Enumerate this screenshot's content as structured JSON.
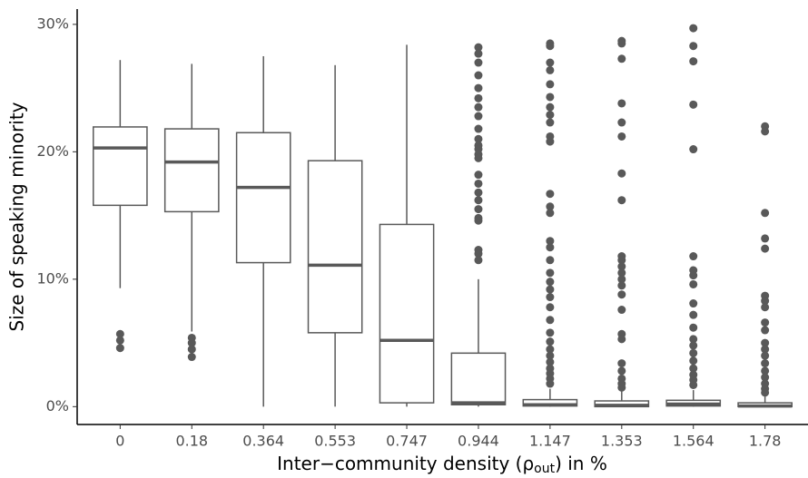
{
  "chart_data": {
    "type": "box",
    "y_label": "Size of speaking minority",
    "x_label": [
      "Inter−community density (ρ",
      "out",
      ") in %"
    ],
    "categories": [
      "0",
      "0.18",
      "0.364",
      "0.553",
      "0.747",
      "0.944",
      "1.147",
      "1.353",
      "1.564",
      "1.78"
    ],
    "color": "#595959",
    "ylim": [
      -1.4,
      31.2
    ],
    "yticks": [
      {
        "value": 0,
        "label": "0%"
      },
      {
        "value": 10,
        "label": "10%"
      },
      {
        "value": 20,
        "label": "20%"
      },
      {
        "value": 30,
        "label": "30%"
      }
    ],
    "boxes": [
      {
        "whislo": 9.3,
        "q1": 15.8,
        "median": 20.3,
        "q3": 21.95,
        "whishi": 27.2,
        "outliers": [
          5.7,
          5.2,
          4.6
        ]
      },
      {
        "whislo": 5.9,
        "q1": 15.3,
        "median": 19.2,
        "q3": 21.8,
        "whishi": 26.9,
        "outliers": [
          5.4,
          5.0,
          4.5,
          3.9
        ]
      },
      {
        "whislo": 0,
        "q1": 11.3,
        "median": 17.2,
        "q3": 21.5,
        "whishi": 27.5,
        "outliers": []
      },
      {
        "whislo": 0,
        "q1": 5.8,
        "median": 11.1,
        "q3": 19.3,
        "whishi": 26.8,
        "outliers": []
      },
      {
        "whislo": 0,
        "q1": 0.3,
        "median": 5.2,
        "q3": 14.3,
        "whishi": 28.4,
        "outliers": []
      },
      {
        "whislo": 0,
        "q1": 0.15,
        "median": 0.3,
        "q3": 4.2,
        "whishi": 10,
        "outliers": [
          28.2,
          27.7,
          27.0,
          26.0,
          25.0,
          24.2,
          23.5,
          22.8,
          21.8,
          21.0,
          20.5,
          20.2,
          19.8,
          19.5,
          18.2,
          17.5,
          16.8,
          16.2,
          15.5,
          14.8,
          14.6,
          12.3,
          12.0,
          11.5
        ]
      },
      {
        "whislo": 0,
        "q1": 0.05,
        "median": 0.15,
        "q3": 0.55,
        "whishi": 1.4,
        "outliers": [
          28.5,
          28.3,
          27.0,
          26.4,
          25.3,
          24.3,
          23.5,
          22.9,
          22.3,
          21.2,
          20.8,
          16.7,
          15.7,
          15.2,
          13.0,
          12.5,
          11.5,
          10.5,
          9.8,
          9.2,
          8.6,
          7.8,
          6.8,
          5.8,
          5.1,
          4.5,
          4.0,
          3.5,
          3.0,
          2.6,
          2.2,
          1.8
        ]
      },
      {
        "whislo": 0,
        "q1": 0,
        "median": 0.1,
        "q3": 0.45,
        "whishi": 1.2,
        "outliers": [
          28.7,
          28.5,
          27.3,
          23.8,
          22.3,
          21.2,
          18.3,
          16.2,
          11.8,
          11.5,
          11.0,
          10.5,
          10.0,
          9.5,
          8.8,
          7.6,
          5.7,
          5.3,
          3.4,
          2.8,
          2.2,
          1.8,
          1.5
        ]
      },
      {
        "whislo": 0,
        "q1": 0.05,
        "median": 0.2,
        "q3": 0.5,
        "whishi": 1.3,
        "outliers": [
          29.7,
          28.3,
          27.1,
          23.7,
          20.2,
          11.8,
          10.7,
          10.3,
          9.6,
          8.1,
          7.2,
          6.2,
          5.3,
          4.8,
          4.2,
          3.6,
          3.0,
          2.5,
          2.1,
          1.7
        ]
      },
      {
        "whislo": 0,
        "q1": 0,
        "median": 0.05,
        "q3": 0.3,
        "whishi": 0.8,
        "outliers": [
          22.0,
          21.6,
          15.2,
          13.2,
          12.4,
          8.7,
          8.3,
          7.8,
          6.6,
          6.0,
          5.0,
          4.5,
          4.0,
          3.4,
          2.8,
          2.3,
          1.8,
          1.4,
          1.1
        ]
      }
    ]
  }
}
